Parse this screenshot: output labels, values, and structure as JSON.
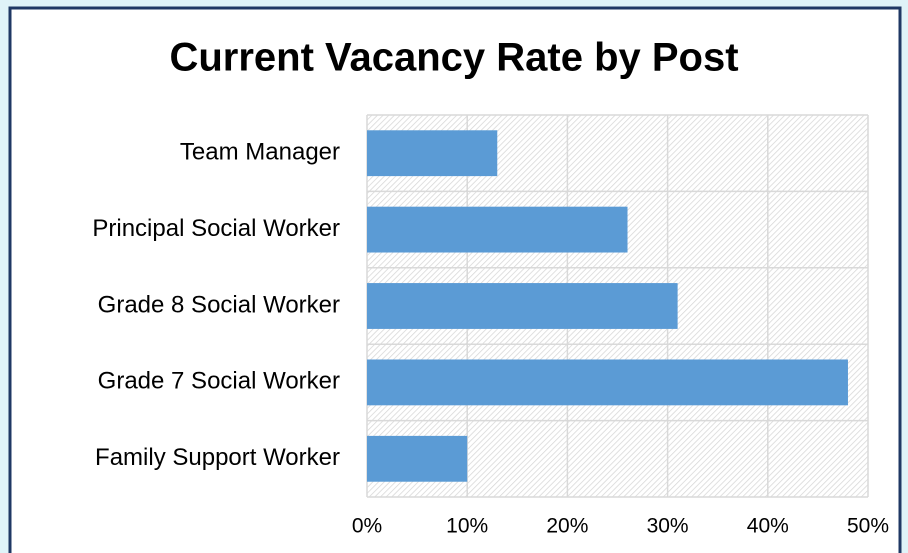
{
  "chart_data": {
    "type": "bar",
    "orientation": "horizontal",
    "title": "Current Vacancy Rate by Post",
    "categories": [
      "Team Manager",
      "Principal Social Worker",
      "Grade 8 Social Worker",
      "Grade 7 Social Worker",
      "Family Support Worker"
    ],
    "values": [
      13,
      26,
      31,
      48,
      10
    ],
    "color": "#5b9bd5",
    "xlim": [
      0,
      50
    ],
    "xticks": [
      {
        "value": 0,
        "label": "0%"
      },
      {
        "value": 10,
        "label": "10%"
      },
      {
        "value": 20,
        "label": "20%"
      },
      {
        "value": 30,
        "label": "30%"
      },
      {
        "value": 40,
        "label": "40%"
      },
      {
        "value": 50,
        "label": "50%"
      }
    ],
    "grid": true
  }
}
